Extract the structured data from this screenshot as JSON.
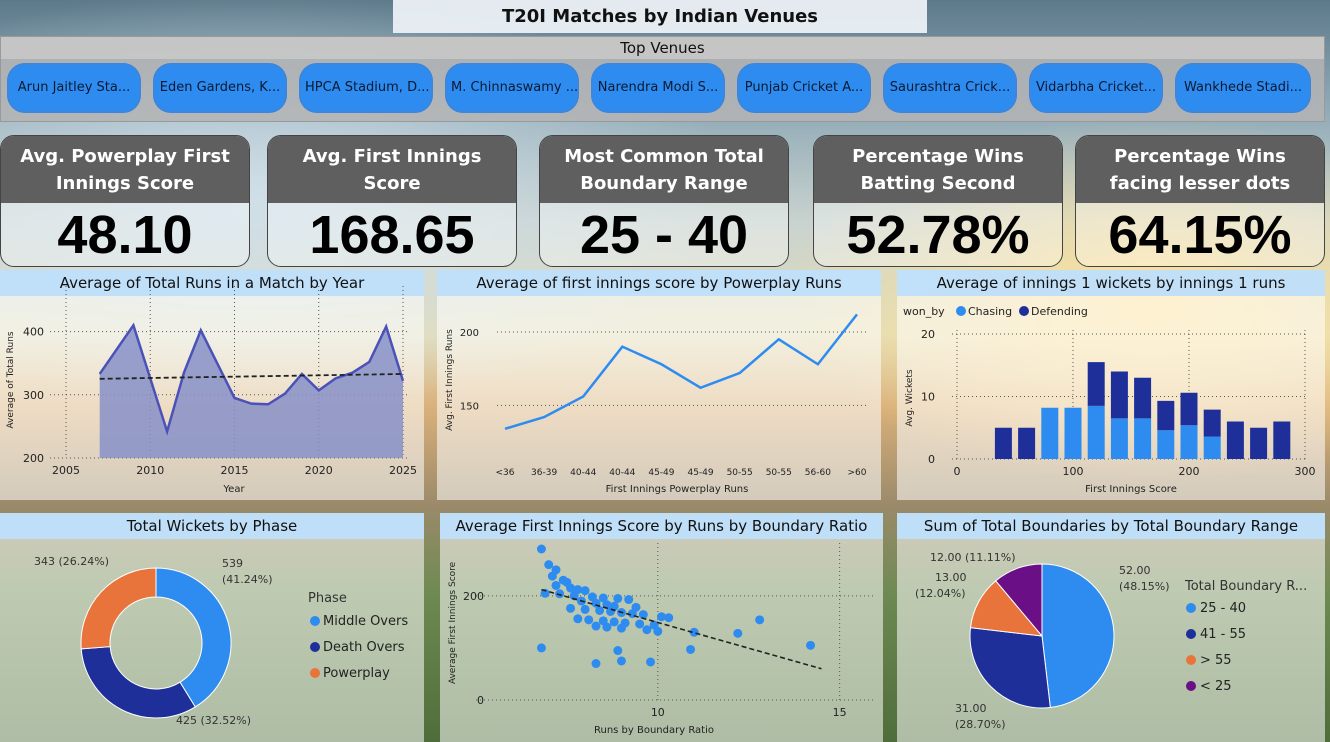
{
  "title": "T20I Matches by Indian Venues",
  "venues": {
    "header": "Top Venues",
    "items": [
      "Arun Jaitley Sta...",
      "Eden Gardens, K...",
      "HPCA Stadium, D...",
      "M. Chinnaswamy ...",
      "Narendra Modi S...",
      "Punjab Cricket A...",
      "Saurashtra Crick...",
      "Vidarbha Cricket...",
      "Wankhede Stadi..."
    ]
  },
  "kpis": [
    {
      "label": "Avg. Powerplay First Innings Score",
      "value": "48.10"
    },
    {
      "label": "Avg. First Innings Score",
      "value": "168.65"
    },
    {
      "label": "Most Common Total Boundary Range",
      "value": "25 - 40"
    },
    {
      "label": "Percentage Wins Batting Second",
      "value": "52.78%"
    },
    {
      "label": "Percentage Wins facing lesser dots",
      "value": "64.15%"
    }
  ],
  "colors": {
    "accent": "#2e8cf0",
    "navy": "#1f2f9a",
    "orange": "#e8743b",
    "purple": "#6a0f86",
    "area": "#8790c8",
    "line": "#4a52b8"
  },
  "chart_data": [
    {
      "type": "area",
      "title": "Average of Total Runs in a Match by Year",
      "xlabel": "Year",
      "ylabel": "Average of Total Runs",
      "xlim": [
        2005,
        2025
      ],
      "ylim": [
        200,
        450
      ],
      "xticks": [
        "2005",
        "2010",
        "2015",
        "2020",
        "2025"
      ],
      "yticks": [
        "200",
        "300",
        "400"
      ],
      "trendline": true,
      "x": [
        2007,
        2009,
        2011,
        2012,
        2013,
        2015,
        2016,
        2017,
        2018,
        2019,
        2020,
        2021,
        2022,
        2023,
        2024,
        2025
      ],
      "values": [
        333,
        410,
        242,
        335,
        402,
        295,
        286,
        285,
        302,
        333,
        307,
        326,
        335,
        352,
        408,
        322
      ]
    },
    {
      "type": "line",
      "title": "Average of first innings score by Powerplay Runs",
      "xlabel": "First Innings Powerplay Runs",
      "ylabel": "Avg. First Innings Runs",
      "ylim": [
        125,
        215
      ],
      "yticks": [
        "150",
        "200"
      ],
      "categories": [
        "<36",
        "36-39",
        "40-44",
        "40-44",
        "45-49",
        "45-49",
        "50-55",
        "50-55",
        "56-60",
        ">60"
      ],
      "values": [
        134,
        142,
        156,
        190,
        178,
        162,
        172,
        195,
        178,
        212
      ]
    },
    {
      "type": "bar",
      "title": "Average of innings 1 wickets by innings 1 runs",
      "xlabel": "First Innings Score",
      "ylabel": "Avg. Wickets",
      "legend_title": "won_by",
      "xlim": [
        0,
        300
      ],
      "ylim": [
        0,
        20
      ],
      "xticks": [
        "0",
        "100",
        "200",
        "300"
      ],
      "yticks": [
        "0",
        "10",
        "20"
      ],
      "x": [
        40,
        60,
        80,
        100,
        120,
        140,
        160,
        180,
        200,
        220,
        240,
        260,
        280
      ],
      "series": [
        {
          "name": "Chasing",
          "values": [
            0,
            0,
            8.2,
            8.2,
            8.5,
            6.5,
            6.5,
            4.6,
            5.4,
            3.6,
            0,
            0,
            0
          ]
        },
        {
          "name": "Defending",
          "values": [
            5,
            5,
            0,
            0,
            7,
            7.5,
            6.5,
            4.7,
            5.2,
            4.3,
            6,
            5,
            6
          ]
        }
      ]
    },
    {
      "type": "pie",
      "subtype": "donut",
      "title": "Total Wickets by Phase",
      "legend_title": "Phase",
      "labels": [
        "Middle Overs",
        "Death Overs",
        "Powerplay"
      ],
      "values": [
        539,
        425,
        343
      ],
      "data_labels": [
        "539",
        "425 (32.52%)",
        "343 (26.24%)"
      ],
      "percent_labels": [
        "(41.24%)",
        "",
        ""
      ]
    },
    {
      "type": "scatter",
      "title": "Average First Innings Score by Runs by Boundary Ratio",
      "xlabel": "Runs by Boundary Ratio",
      "ylabel": "Average First Innings Score",
      "xlim": [
        5,
        16
      ],
      "ylim": [
        0,
        290
      ],
      "xticks": [
        "10",
        "15"
      ],
      "yticks": [
        "0",
        "200"
      ],
      "trendline": true,
      "points": [
        [
          6.8,
          290
        ],
        [
          7.0,
          260
        ],
        [
          7.2,
          250
        ],
        [
          7.1,
          238
        ],
        [
          7.4,
          230
        ],
        [
          7.5,
          226
        ],
        [
          7.2,
          220
        ],
        [
          7.6,
          215
        ],
        [
          7.8,
          212
        ],
        [
          8.0,
          210
        ],
        [
          6.9,
          205
        ],
        [
          7.3,
          204
        ],
        [
          7.7,
          200
        ],
        [
          8.2,
          198
        ],
        [
          8.5,
          196
        ],
        [
          8.9,
          195
        ],
        [
          9.2,
          193
        ],
        [
          7.9,
          190
        ],
        [
          8.3,
          186
        ],
        [
          8.6,
          183
        ],
        [
          8.8,
          180
        ],
        [
          9.4,
          178
        ],
        [
          7.6,
          176
        ],
        [
          8.0,
          174
        ],
        [
          8.4,
          172
        ],
        [
          8.7,
          170
        ],
        [
          9.0,
          168
        ],
        [
          9.3,
          166
        ],
        [
          9.6,
          164
        ],
        [
          10.1,
          160
        ],
        [
          10.3,
          158
        ],
        [
          7.8,
          156
        ],
        [
          8.1,
          154
        ],
        [
          8.5,
          152
        ],
        [
          8.8,
          150
        ],
        [
          9.1,
          148
        ],
        [
          9.5,
          146
        ],
        [
          9.9,
          144
        ],
        [
          8.3,
          142
        ],
        [
          8.6,
          140
        ],
        [
          9.0,
          138
        ],
        [
          9.7,
          135
        ],
        [
          10.0,
          132
        ],
        [
          11.0,
          130
        ],
        [
          12.2,
          128
        ],
        [
          12.8,
          154
        ],
        [
          14.2,
          105
        ],
        [
          10.9,
          97
        ],
        [
          6.8,
          100
        ],
        [
          8.9,
          95
        ],
        [
          8.3,
          70
        ],
        [
          9.0,
          75
        ],
        [
          9.8,
          73
        ]
      ]
    },
    {
      "type": "pie",
      "title": "Sum of Total Boundaries by Total Boundary Range",
      "legend_title": "Total Boundary R...",
      "labels": [
        "25 - 40",
        "41 - 55",
        "> 55",
        "< 25"
      ],
      "values": [
        52,
        31,
        13,
        12
      ],
      "data_labels": [
        "52.00",
        "31.00",
        "13.00",
        "12.00 (11.11%)"
      ],
      "percent_labels": [
        "(48.15%)",
        "(28.70%)",
        "(12.04%)",
        ""
      ]
    }
  ]
}
